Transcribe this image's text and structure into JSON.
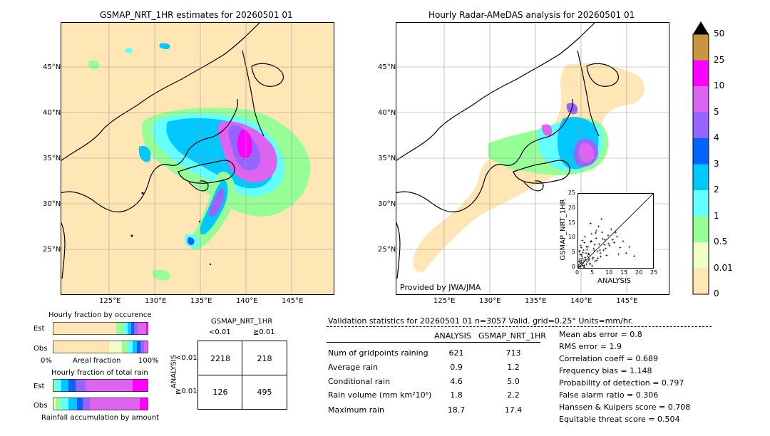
{
  "left_map": {
    "title": "GSMAP_NRT_1HR estimates for 20260501 01",
    "lat_labels": [
      "45°N",
      "40°N",
      "35°N",
      "30°N",
      "25°N"
    ],
    "lon_labels": [
      "125°E",
      "130°E",
      "135°E",
      "140°E",
      "145°E"
    ]
  },
  "right_map": {
    "title": "Hourly Radar-AMeDAS analysis for 20260501 01",
    "lat_labels": [
      "45°N",
      "40°N",
      "35°N",
      "30°N",
      "25°N"
    ],
    "lon_labels": [
      "125°E",
      "130°E",
      "135°E",
      "140°E",
      "145°E"
    ],
    "credit": "Provided by JWA/JMA"
  },
  "colorbar": {
    "labels": [
      "50",
      "25",
      "10",
      "5",
      "4",
      "3",
      "2",
      "1",
      "0.5",
      "0.01",
      "0"
    ],
    "colors": [
      "#c8963c",
      "#ff00ff",
      "#dc64f0",
      "#9664ff",
      "#0064ff",
      "#00c8ff",
      "#64ffff",
      "#96ff96",
      "#f0ffc8",
      "#ffe6b4"
    ]
  },
  "fraction_occurrence": {
    "title": "Hourly fraction by occurence",
    "row_labels": [
      "Est",
      "Obs"
    ],
    "axis_left": "0%",
    "axis_mid": "Areal fraction",
    "axis_right": "100%"
  },
  "fraction_rain": {
    "title": "Hourly fraction of total rain",
    "row_labels": [
      "Est",
      "Obs"
    ],
    "footer": "Rainfall accumulation by amount"
  },
  "contingency": {
    "header": "GSMAP_NRT_1HR",
    "col_labels": [
      "<0.01",
      "≧0.01"
    ],
    "row_title": "ANALYSIS",
    "row_labels": [
      "<0.01",
      "≧0.01"
    ],
    "cells": [
      [
        "2218",
        "218"
      ],
      [
        "126",
        "495"
      ]
    ]
  },
  "validation": {
    "header": "Validation statistics for 20260501 01  n=3057 Valid. grid=0.25° Units=mm/hr.",
    "col_analysis": "ANALYSIS",
    "col_gsmap": "GSMAP_NRT_1HR",
    "rows": [
      {
        "label": "Num of gridpoints raining",
        "analysis": "621",
        "gsmap": "713"
      },
      {
        "label": "Average rain",
        "analysis": "0.9",
        "gsmap": "1.2"
      },
      {
        "label": "Conditional rain",
        "analysis": "4.6",
        "gsmap": "5.0"
      },
      {
        "label": "Rain volume (mm km²10⁶)",
        "analysis": "1.8",
        "gsmap": "2.2"
      },
      {
        "label": "Maximum rain",
        "analysis": "18.7",
        "gsmap": "17.4"
      }
    ],
    "scores": [
      "Mean abs error =    0.8",
      "RMS error =    1.9",
      "Correlation coeff =  0.689",
      "Frequency bias =  1.148",
      "Probability of detection =  0.797",
      "False alarm ratio =  0.306",
      "Hanssen & Kuipers score =  0.708",
      "Equitable threat score =  0.504"
    ]
  },
  "chart_data": [
    {
      "type": "scatter",
      "xlabel": "ANALYSIS",
      "ylabel": "GSMAP_NRT_1HR",
      "xlim": [
        0,
        25
      ],
      "ylim": [
        0,
        25
      ],
      "ticks": [
        "0",
        "5",
        "10",
        "15",
        "20",
        "25"
      ],
      "points_x": [
        0.2,
        0.5,
        0.8,
        1.0,
        1.2,
        1.5,
        1.8,
        2.0,
        2.3,
        2.6,
        3.0,
        3.3,
        3.6,
        4.0,
        4.4,
        4.8,
        5.2,
        5.6,
        6.0,
        6.5,
        7.0,
        7.5,
        8.0,
        8.5,
        9.0,
        9.5,
        10.0,
        10.5,
        11.0,
        12.0,
        13.0,
        14.0,
        15.0,
        16.0,
        17.0,
        18.7,
        0.3,
        0.6,
        0.9,
        1.1,
        1.4,
        1.7,
        2.1,
        2.5,
        2.9,
        3.4,
        3.9,
        4.5,
        5.0,
        5.5,
        6.2,
        6.8,
        7.4,
        8.2,
        9.2,
        10.2,
        0.4,
        0.7,
        1.0,
        1.3,
        1.6,
        1.9,
        2.2,
        2.7,
        3.2,
        3.7,
        4.2,
        4.7,
        5.3,
        6.0,
        6.6,
        7.2,
        0.1,
        0.3,
        0.5,
        0.8,
        1.1,
        1.4,
        2.0,
        2.8,
        3.5,
        4.1,
        5.8,
        7.8,
        8.8,
        11.5,
        12.5,
        13.5
      ],
      "points_y": [
        1.0,
        3.0,
        0.5,
        2.5,
        4.0,
        1.5,
        6.0,
        0.8,
        3.5,
        5.0,
        2.0,
        7.0,
        4.5,
        1.2,
        9.0,
        3.0,
        6.5,
        2.2,
        10.0,
        5.5,
        8.0,
        3.8,
        12.0,
        6.0,
        9.5,
        4.2,
        11.0,
        7.5,
        13.0,
        8.5,
        10.5,
        6.8,
        9.0,
        5.0,
        7.0,
        4.0,
        5.5,
        0.3,
        7.5,
        1.8,
        3.2,
        0.6,
        8.5,
        2.8,
        6.2,
        4.8,
        1.5,
        11.5,
        3.5,
        7.8,
        2.5,
        14.0,
        5.0,
        9.8,
        6.5,
        8.2,
        2.0,
        4.5,
        6.8,
        0.9,
        5.2,
        2.4,
        10.5,
        1.2,
        4.0,
        3.0,
        8.8,
        0.7,
        5.8,
        12.5,
        3.3,
        6.0,
        0.4,
        2.2,
        5.8,
        1.6,
        4.4,
        9.2,
        0.2,
        7.2,
        2.6,
        15.0,
        11.8,
        16.5,
        7.8,
        9.5,
        12.0,
        4.6
      ]
    }
  ]
}
